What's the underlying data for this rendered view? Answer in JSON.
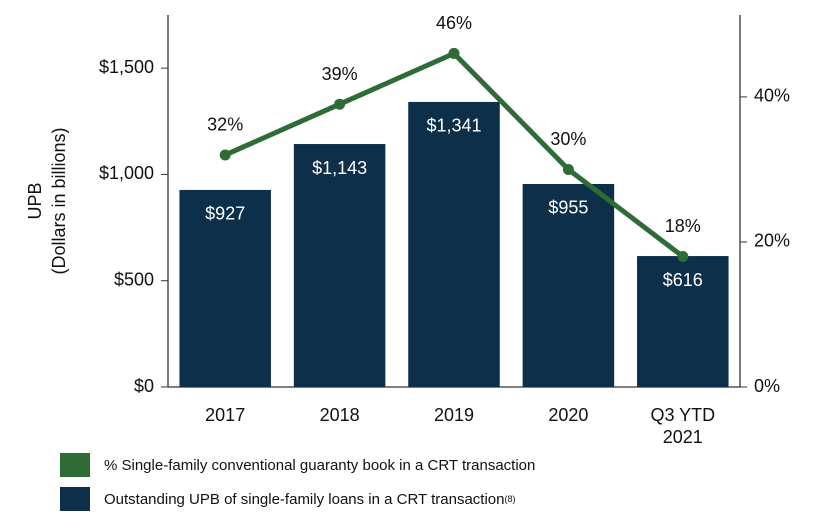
{
  "chart_data": {
    "type": "bar",
    "ylabel": [
      "UPB",
      "(Dollars in billions)"
    ],
    "categories": [
      "2017",
      "2018",
      "2019",
      "2020",
      "Q3 YTD 2021"
    ],
    "series": [
      {
        "name": "% Single-family conventional guaranty book in a CRT transaction",
        "type": "line",
        "axis": "y2",
        "color": "#2e6b35",
        "values": [
          32,
          39,
          46,
          30,
          18
        ],
        "value_labels": [
          "32%",
          "39%",
          "46%",
          "30%",
          "18%"
        ]
      },
      {
        "name": "Outstanding UPB of single-family loans in a CRT transaction",
        "note": "(8)",
        "type": "bar",
        "color": "#0d2f4a",
        "values": [
          927,
          1143,
          1341,
          955,
          616
        ],
        "value_labels": [
          "$927",
          "$1,143",
          "$1,341",
          "$955",
          "$616"
        ]
      }
    ],
    "ylim": [
      0,
      1750
    ],
    "yticks": [
      {
        "value": 0,
        "label": "$0"
      },
      {
        "value": 500,
        "label": "$500"
      },
      {
        "value": 1000,
        "label": "$1,000"
      },
      {
        "value": 1500,
        "label": "$1,500"
      }
    ],
    "y2lim": [
      0,
      51.3
    ],
    "y2ticks": [
      {
        "value": 0,
        "label": "0%"
      },
      {
        "value": 20,
        "label": "20%"
      },
      {
        "value": 40,
        "label": "40%"
      }
    ]
  }
}
